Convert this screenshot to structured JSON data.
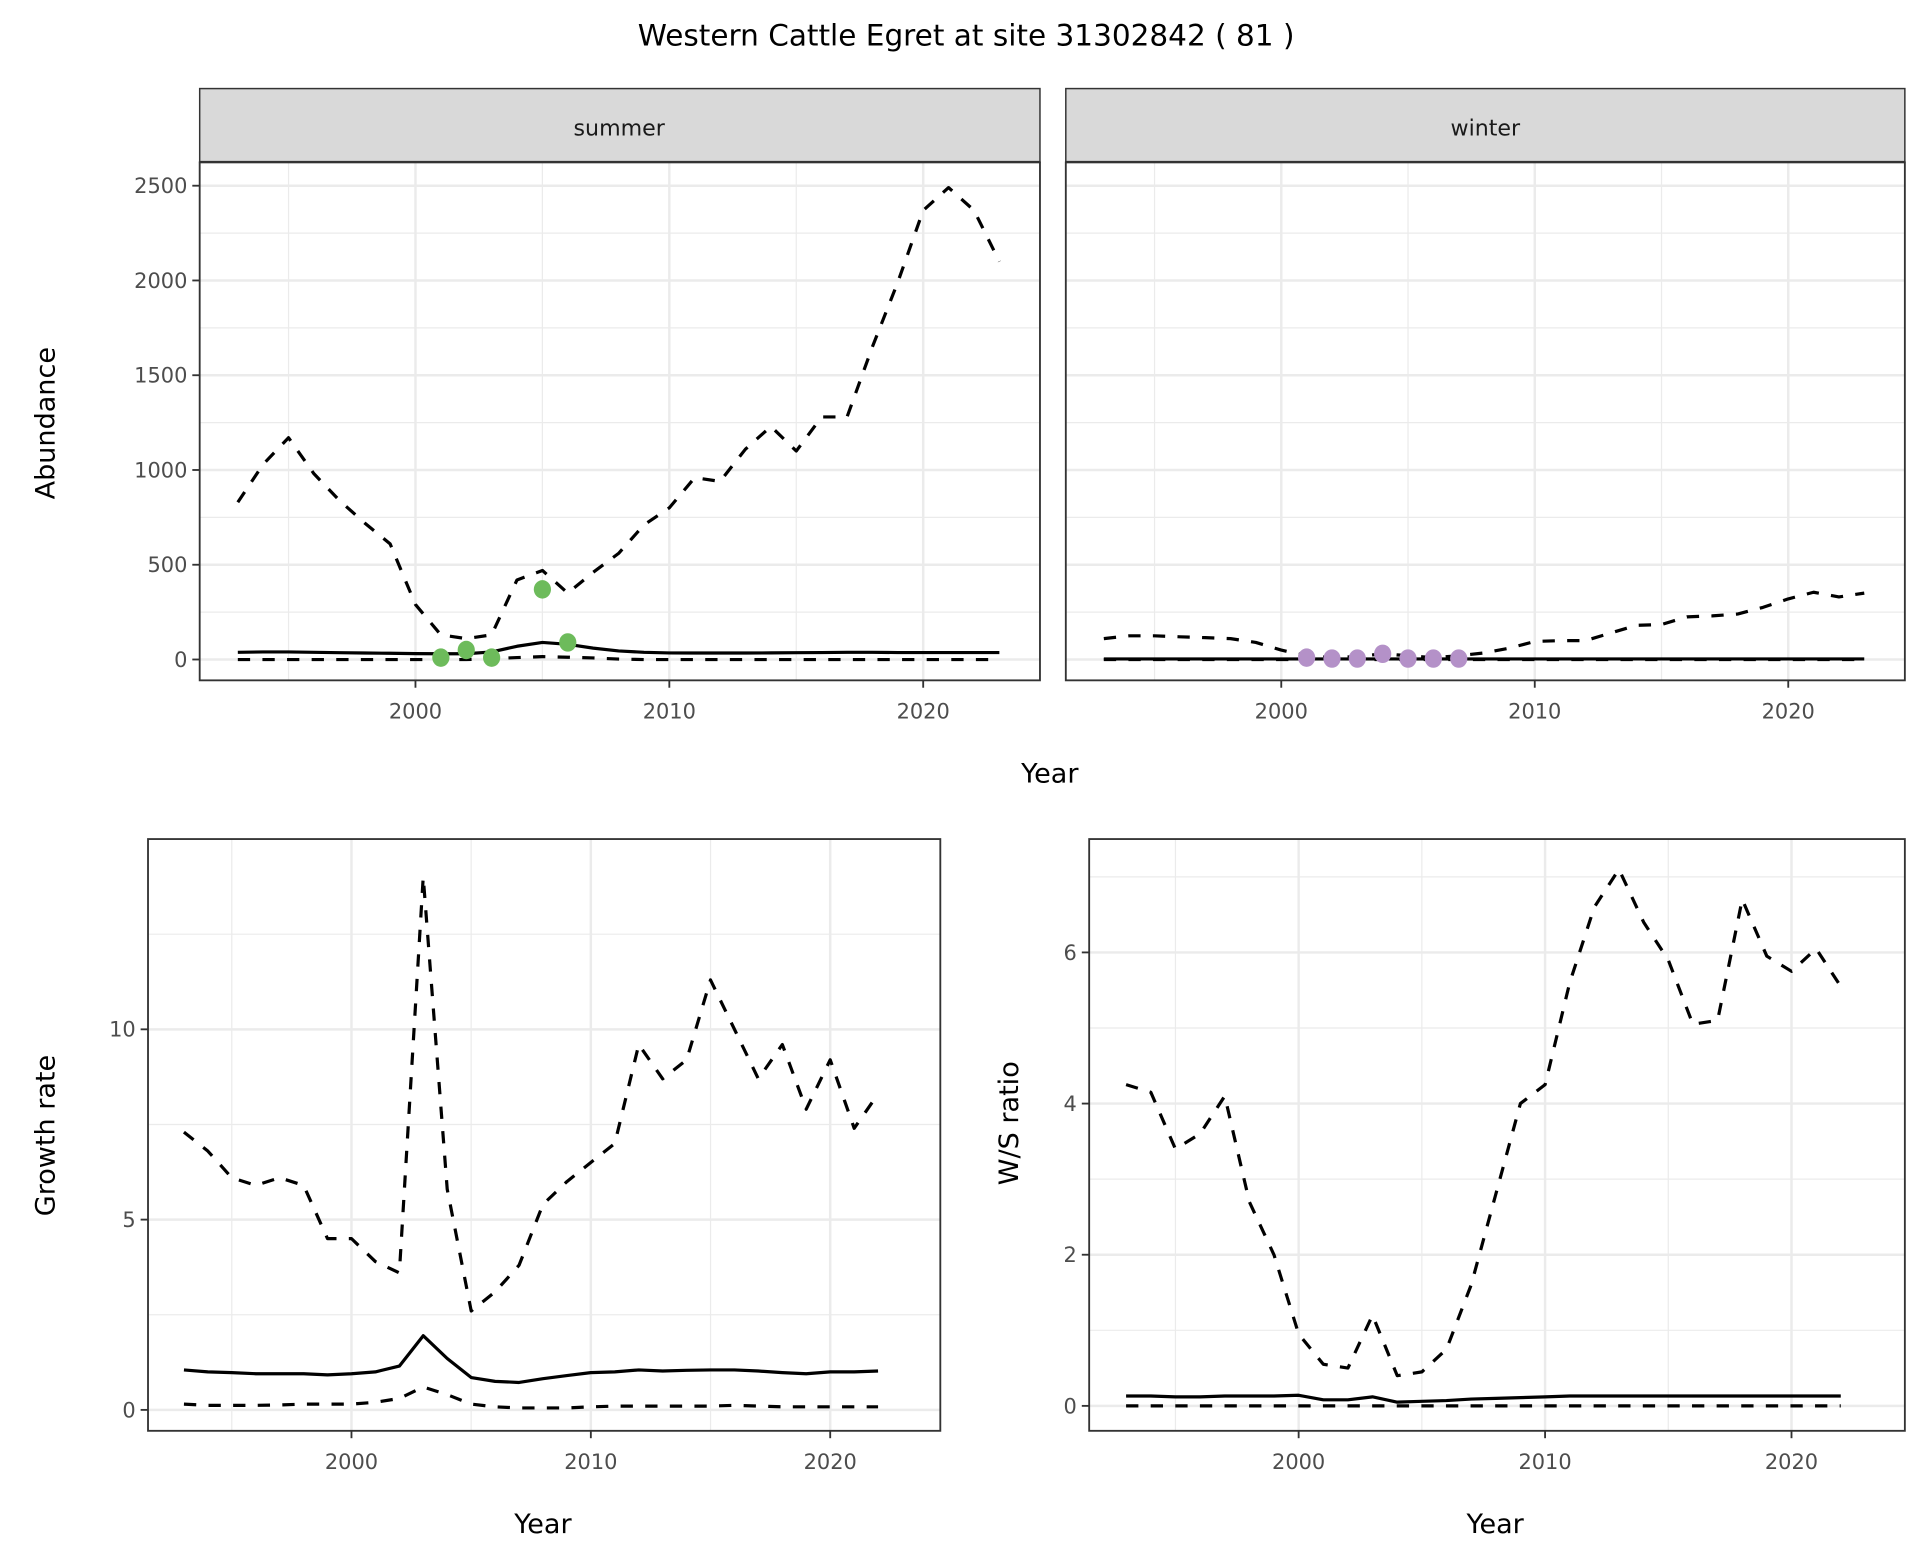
{
  "title": "Western Cattle Egret at site 31302842 ( 81 )",
  "colors": {
    "summer_points": "#6dbb5b",
    "winter_points": "#b491c8",
    "grid": "#ebebeb",
    "strip": "#d9d9d9"
  },
  "chart_data": [
    {
      "type": "line",
      "facet": "summer",
      "strip_label": "summer",
      "xlabel": "Year",
      "ylabel": "Abundance",
      "xlim": [
        1991.5,
        2024.6
      ],
      "ylim": [
        -110,
        2623
      ],
      "xticks": [
        2000,
        2010,
        2020
      ],
      "yticks": [
        0,
        500,
        1000,
        1500,
        2000,
        2500
      ],
      "x": [
        1993,
        1994,
        1995,
        1996,
        1997,
        1998,
        1999,
        2000,
        2001,
        2002,
        2003,
        2004,
        2005,
        2006,
        2007,
        2008,
        2009,
        2010,
        2011,
        2012,
        2013,
        2014,
        2015,
        2016,
        2017,
        2018,
        2019,
        2020,
        2021,
        2022,
        2023
      ],
      "series": [
        {
          "name": "upper",
          "style": "dashed",
          "values": [
            830,
            1030,
            1170,
            980,
            840,
            720,
            610,
            290,
            130,
            110,
            130,
            420,
            470,
            350,
            460,
            560,
            710,
            800,
            960,
            940,
            1110,
            1230,
            1100,
            1280,
            1280,
            1650,
            1990,
            2370,
            2490,
            2370,
            2100
          ]
        },
        {
          "name": "mean",
          "style": "solid",
          "values": [
            38,
            40,
            40,
            38,
            36,
            34,
            33,
            31,
            30,
            30,
            40,
            70,
            90,
            80,
            60,
            45,
            38,
            35,
            34,
            34,
            34,
            35,
            36,
            37,
            38,
            38,
            37,
            37,
            37,
            37,
            37
          ]
        },
        {
          "name": "lower",
          "style": "dashed",
          "values": [
            0,
            0,
            0,
            0,
            0,
            0,
            0,
            0,
            0,
            0,
            5,
            10,
            15,
            12,
            8,
            2,
            0,
            0,
            0,
            0,
            0,
            0,
            0,
            0,
            0,
            0,
            0,
            0,
            0,
            0,
            0
          ]
        }
      ],
      "points": {
        "x": [
          2001,
          2002,
          2003,
          2005,
          2006
        ],
        "y": [
          10,
          50,
          10,
          370,
          90
        ]
      }
    },
    {
      "type": "line",
      "facet": "winter",
      "strip_label": "winter",
      "xlabel": "Year",
      "ylabel": "Abundance",
      "xlim": [
        1991.5,
        2024.6
      ],
      "ylim": [
        -110,
        2623
      ],
      "xticks": [
        2000,
        2010,
        2020
      ],
      "yticks": [
        0,
        500,
        1000,
        1500,
        2000,
        2500
      ],
      "x": [
        1993,
        1994,
        1995,
        1996,
        1997,
        1998,
        1999,
        2000,
        2001,
        2002,
        2003,
        2004,
        2005,
        2006,
        2007,
        2008,
        2009,
        2010,
        2011,
        2012,
        2013,
        2014,
        2015,
        2016,
        2017,
        2018,
        2019,
        2020,
        2021,
        2022,
        2023
      ],
      "series": [
        {
          "name": "upper",
          "style": "dashed",
          "values": [
            110,
            125,
            125,
            120,
            115,
            110,
            90,
            50,
            20,
            10,
            15,
            30,
            20,
            10,
            20,
            35,
            60,
            95,
            100,
            100,
            140,
            180,
            185,
            225,
            230,
            240,
            275,
            320,
            355,
            330,
            350
          ]
        },
        {
          "name": "mean",
          "style": "solid",
          "values": [
            3,
            3,
            3,
            3,
            3,
            3,
            3,
            3,
            3,
            3,
            3,
            3,
            3,
            3,
            3,
            3,
            3,
            3,
            3,
            3,
            3,
            3,
            3,
            3,
            3,
            3,
            3,
            3,
            3,
            3,
            3
          ]
        },
        {
          "name": "lower",
          "style": "dashed",
          "values": [
            0,
            0,
            0,
            0,
            0,
            0,
            0,
            0,
            0,
            0,
            0,
            0,
            0,
            0,
            0,
            0,
            0,
            0,
            0,
            0,
            0,
            0,
            0,
            0,
            0,
            0,
            0,
            0,
            0,
            0,
            0
          ]
        }
      ],
      "points": {
        "x": [
          2001,
          2002,
          2003,
          2004,
          2005,
          2006,
          2007
        ],
        "y": [
          10,
          5,
          5,
          30,
          5,
          5,
          5
        ]
      }
    },
    {
      "type": "line",
      "facet": "growth",
      "xlabel": "Year",
      "ylabel": "Growth rate",
      "xlim": [
        1991.5,
        2024.6
      ],
      "ylim": [
        -0.55,
        15.0
      ],
      "xticks": [
        2000,
        2010,
        2020
      ],
      "yticks": [
        0,
        5,
        10
      ],
      "x": [
        1993,
        1994,
        1995,
        1996,
        1997,
        1998,
        1999,
        2000,
        2001,
        2002,
        2003,
        2004,
        2005,
        2006,
        2007,
        2008,
        2009,
        2010,
        2011,
        2012,
        2013,
        2014,
        2015,
        2016,
        2017,
        2018,
        2019,
        2020,
        2021,
        2022
      ],
      "series": [
        {
          "name": "upper",
          "style": "dashed",
          "values": [
            7.3,
            6.8,
            6.1,
            5.9,
            6.1,
            5.9,
            4.5,
            4.5,
            3.9,
            3.6,
            14.0,
            5.8,
            2.6,
            3.1,
            3.8,
            5.4,
            6.0,
            6.5,
            7.0,
            9.6,
            8.7,
            9.2,
            11.3,
            10.0,
            8.7,
            9.6,
            7.9,
            9.2,
            7.4,
            8.3
          ]
        },
        {
          "name": "mean",
          "style": "solid",
          "values": [
            1.05,
            1.0,
            0.98,
            0.95,
            0.95,
            0.95,
            0.92,
            0.95,
            1.0,
            1.15,
            1.95,
            1.35,
            0.85,
            0.75,
            0.72,
            0.82,
            0.9,
            0.98,
            1.0,
            1.05,
            1.02,
            1.04,
            1.05,
            1.05,
            1.02,
            0.98,
            0.95,
            1.0,
            1.0,
            1.02
          ]
        },
        {
          "name": "lower",
          "style": "dashed",
          "values": [
            0.15,
            0.12,
            0.12,
            0.12,
            0.13,
            0.15,
            0.15,
            0.15,
            0.2,
            0.3,
            0.6,
            0.4,
            0.15,
            0.08,
            0.05,
            0.05,
            0.05,
            0.08,
            0.1,
            0.1,
            0.1,
            0.1,
            0.1,
            0.12,
            0.1,
            0.08,
            0.08,
            0.08,
            0.08,
            0.08
          ]
        }
      ]
    },
    {
      "type": "line",
      "facet": "ratio",
      "xlabel": "Year",
      "ylabel": "W/S ratio",
      "xlim": [
        1991.5,
        2024.6
      ],
      "ylim": [
        -0.33,
        7.5
      ],
      "xticks": [
        2000,
        2010,
        2020
      ],
      "yticks": [
        0,
        2,
        4,
        6
      ],
      "x": [
        1993,
        1994,
        1995,
        1996,
        1997,
        1998,
        1999,
        2000,
        2001,
        2002,
        2003,
        2004,
        2005,
        2006,
        2007,
        2008,
        2009,
        2010,
        2011,
        2012,
        2013,
        2014,
        2015,
        2016,
        2017,
        2018,
        2019,
        2020,
        2021,
        2022
      ],
      "series": [
        {
          "name": "upper",
          "style": "dashed",
          "values": [
            4.25,
            4.15,
            3.4,
            3.6,
            4.1,
            2.7,
            2.0,
            0.95,
            0.55,
            0.5,
            1.2,
            0.4,
            0.45,
            0.75,
            1.6,
            2.8,
            4.0,
            4.25,
            5.6,
            6.6,
            7.1,
            6.4,
            5.9,
            5.05,
            5.1,
            6.7,
            5.95,
            5.75,
            6.05,
            5.55
          ]
        },
        {
          "name": "mean",
          "style": "solid",
          "values": [
            0.13,
            0.13,
            0.12,
            0.12,
            0.13,
            0.13,
            0.13,
            0.14,
            0.08,
            0.08,
            0.12,
            0.05,
            0.06,
            0.07,
            0.09,
            0.1,
            0.11,
            0.12,
            0.13,
            0.13,
            0.13,
            0.13,
            0.13,
            0.13,
            0.13,
            0.13,
            0.13,
            0.13,
            0.13,
            0.13
          ]
        },
        {
          "name": "lower",
          "style": "dashed",
          "values": [
            0,
            0,
            0,
            0,
            0,
            0,
            0,
            0,
            0,
            0,
            0,
            0,
            0,
            0,
            0,
            0,
            0,
            0,
            0,
            0,
            0,
            0,
            0,
            0,
            0,
            0,
            0,
            0,
            0,
            0
          ]
        }
      ]
    }
  ]
}
